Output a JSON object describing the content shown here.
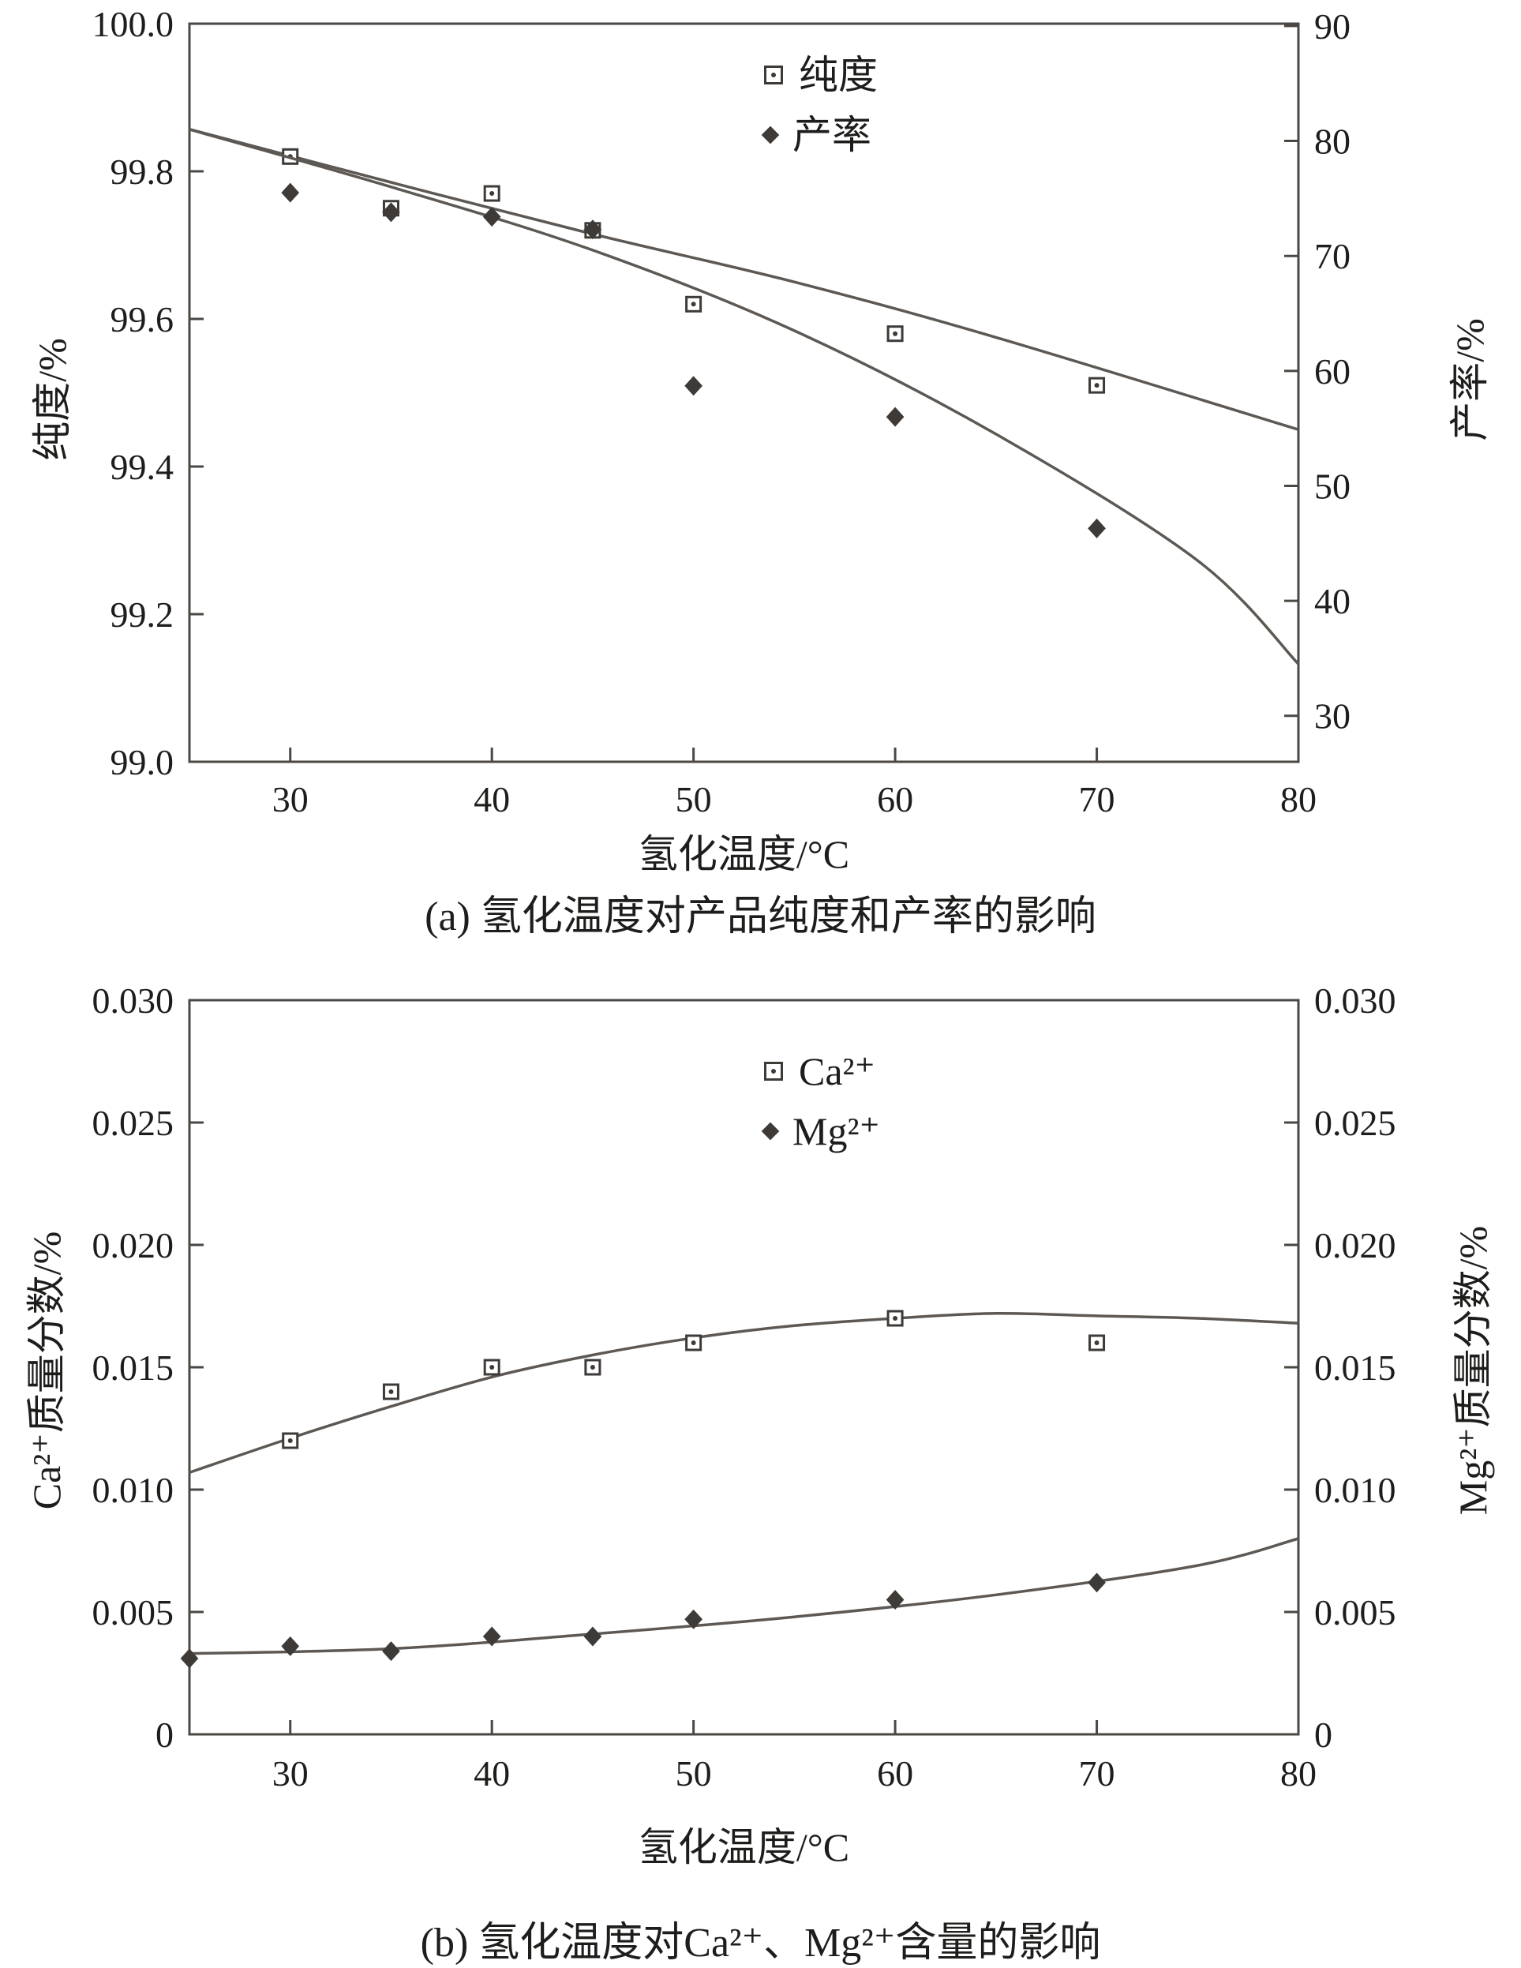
{
  "page": {
    "background": "#ffffff"
  },
  "colors": {
    "axis": "#4b4743",
    "line": "#5d5853",
    "marker": "#3e3a37",
    "text": "#1d1d1b"
  },
  "chart_data": [
    {
      "type": "line",
      "caption": "(a) 氢化温度对产品纯度和产率的影响",
      "xlabel": "氢化温度/°C",
      "x_axis": {
        "min": 25,
        "max": 80,
        "ticks": [
          "30",
          "40",
          "50",
          "60",
          "70",
          "80"
        ]
      },
      "left_axis": {
        "label": "纯度/%",
        "min": 99.0,
        "max": 100.0,
        "ticks": [
          "99.0",
          "99.2",
          "99.4",
          "99.6",
          "99.8",
          "100.0"
        ]
      },
      "right_axis": {
        "label": "产率/%",
        "min": 26.0,
        "max": 90.2,
        "ticks": [
          "30",
          "40",
          "50",
          "60",
          "70",
          "80",
          "90"
        ]
      },
      "legend": [
        {
          "label": "纯度",
          "marker": "open-square"
        },
        {
          "label": "产率",
          "marker": "filled-diamond"
        }
      ],
      "series": [
        {
          "name": "纯度",
          "axis": "left",
          "marker": "open-square",
          "x": [
            30,
            35,
            40,
            45,
            50,
            60,
            70
          ],
          "y": [
            99.82,
            99.75,
            99.77,
            99.72,
            99.62,
            99.58,
            99.51
          ],
          "fit_x": [
            25,
            35,
            45,
            55,
            65,
            80
          ],
          "fit_y": [
            99.857,
            99.785,
            99.715,
            99.65,
            99.575,
            99.45
          ]
        },
        {
          "name": "产率",
          "axis": "right",
          "marker": "filled-diamond",
          "x": [
            30,
            35,
            40,
            45,
            50,
            60,
            70
          ],
          "y": [
            75.5,
            73.8,
            73.4,
            72.3,
            58.7,
            56.0,
            46.3
          ],
          "fit_x": [
            25,
            35,
            45,
            55,
            65,
            75,
            80
          ],
          "fit_y": [
            81.0,
            76.0,
            70.5,
            63.5,
            54.5,
            43.5,
            34.5
          ]
        }
      ]
    },
    {
      "type": "line",
      "caption": "(b) 氢化温度对Ca²⁺、Mg²⁺含量的影响",
      "xlabel": "氢化温度/°C",
      "x_axis": {
        "min": 25,
        "max": 80,
        "ticks": [
          "30",
          "40",
          "50",
          "60",
          "70",
          "80"
        ]
      },
      "left_axis": {
        "label": "Ca²⁺质量分数/%",
        "min": 0,
        "max": 0.03,
        "ticks": [
          "0",
          "0.005",
          "0.010",
          "0.015",
          "0.020",
          "0.025",
          "0.030"
        ]
      },
      "right_axis": {
        "label": "Mg²⁺质量分数/%",
        "min": 0,
        "max": 0.03,
        "ticks": [
          "0",
          "0.005",
          "0.010",
          "0.015",
          "0.020",
          "0.025",
          "0.030"
        ]
      },
      "legend": [
        {
          "label": "Ca²⁺",
          "marker": "open-square"
        },
        {
          "label": "Mg²⁺",
          "marker": "filled-diamond"
        }
      ],
      "series": [
        {
          "name": "Ca²⁺",
          "axis": "left",
          "marker": "open-square",
          "x": [
            30,
            35,
            40,
            45,
            50,
            60,
            70
          ],
          "y": [
            0.012,
            0.014,
            0.015,
            0.015,
            0.016,
            0.017,
            0.016
          ],
          "fit_x": [
            25,
            30,
            35,
            40,
            45,
            50,
            55,
            60,
            65,
            70,
            75,
            80
          ],
          "fit_y": [
            0.0107,
            0.0121,
            0.0134,
            0.0146,
            0.0155,
            0.0162,
            0.0167,
            0.017,
            0.0172,
            0.0171,
            0.017,
            0.0168
          ]
        },
        {
          "name": "Mg²⁺",
          "axis": "right",
          "marker": "filled-diamond",
          "x": [
            25,
            30,
            35,
            40,
            45,
            50,
            60,
            70
          ],
          "y": [
            0.0031,
            0.0036,
            0.0034,
            0.004,
            0.004,
            0.0047,
            0.0055,
            0.0062
          ],
          "fit_x": [
            25,
            35,
            45,
            55,
            65,
            75,
            80
          ],
          "fit_y": [
            0.0033,
            0.0035,
            0.0041,
            0.0048,
            0.0057,
            0.0069,
            0.008
          ]
        }
      ]
    }
  ]
}
